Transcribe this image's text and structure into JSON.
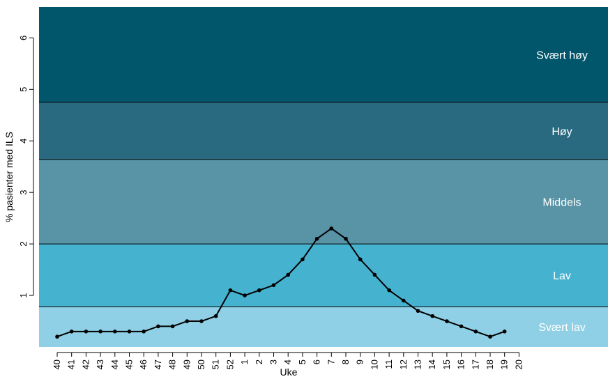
{
  "chart_data": {
    "type": "line",
    "xlabel": "Uke",
    "ylabel": "% pasienter med ILS",
    "ylim": [
      0,
      6.6
    ],
    "yticks": [
      1,
      2,
      3,
      4,
      5,
      6
    ],
    "categories": [
      "40",
      "41",
      "42",
      "43",
      "44",
      "45",
      "46",
      "47",
      "48",
      "49",
      "50",
      "51",
      "52",
      "1",
      "2",
      "3",
      "4",
      "5",
      "6",
      "7",
      "8",
      "9",
      "10",
      "11",
      "12",
      "13",
      "14",
      "15",
      "16",
      "17",
      "18",
      "19",
      "20"
    ],
    "series": [
      {
        "values": [
          0.2,
          0.3,
          0.3,
          0.3,
          0.3,
          0.3,
          0.3,
          0.4,
          0.4,
          0.5,
          0.5,
          0.6,
          1.1,
          1.0,
          1.1,
          1.2,
          1.4,
          1.7,
          2.1,
          2.3,
          2.1,
          1.7,
          1.4,
          1.1,
          0.9,
          0.7,
          0.6,
          0.5,
          0.4,
          0.3,
          0.2,
          0.3,
          null
        ],
        "color": "#000000"
      }
    ],
    "bands": [
      {
        "label": "Svært lav",
        "from": 0,
        "to": 0.78,
        "color": "#8fd0e6"
      },
      {
        "label": "Lav",
        "from": 0.78,
        "to": 2.0,
        "color": "#45b2cf"
      },
      {
        "label": "Middels",
        "from": 2.0,
        "to": 3.64,
        "color": "#5893a6"
      },
      {
        "label": "Høy",
        "from": 3.64,
        "to": 4.75,
        "color": "#2a6a80"
      },
      {
        "label": "Svært høy",
        "from": 4.75,
        "to": 6.6,
        "color": "#02566b"
      }
    ],
    "grid": false,
    "legend": "none"
  }
}
